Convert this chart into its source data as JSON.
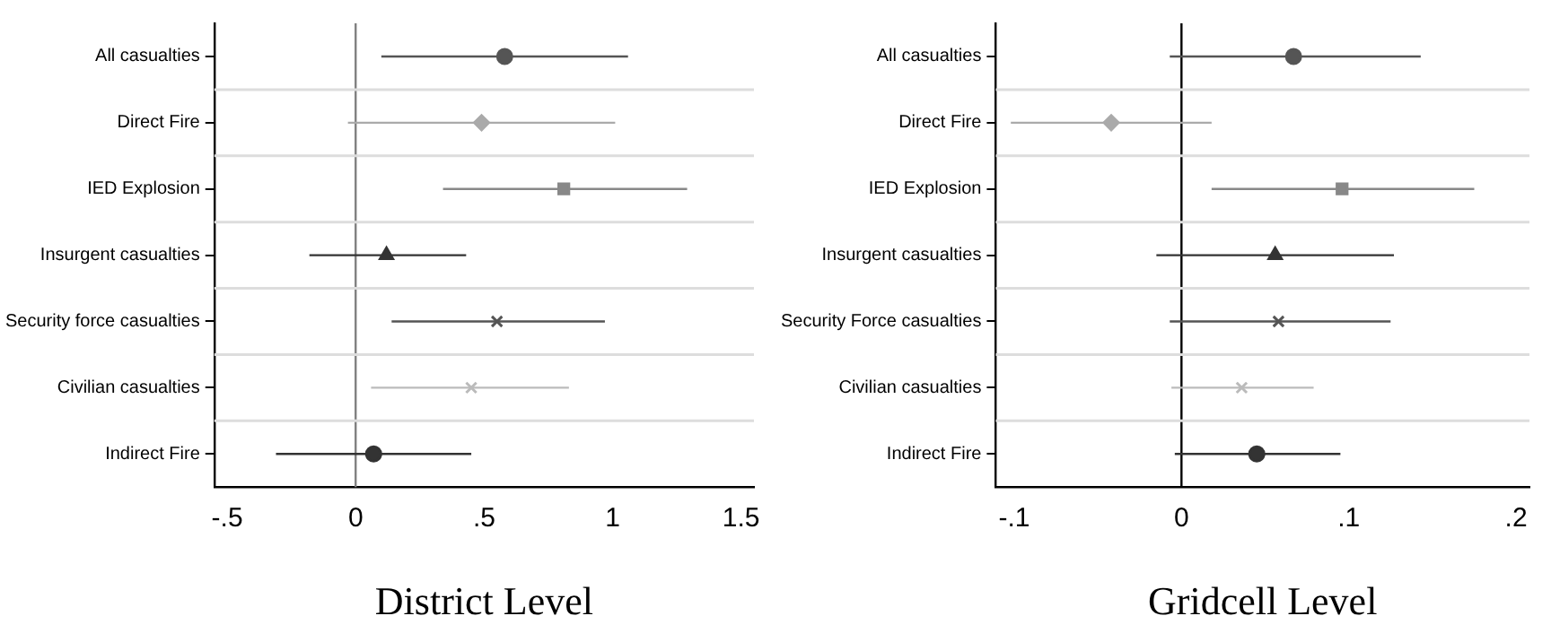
{
  "chart_data": [
    {
      "type": "scatter",
      "orientation": "horizontal",
      "xlabel": "District Level",
      "categories": [
        "All casualties",
        "Direct Fire",
        "IED Explosion",
        "Insurgent casualties",
        "Security force casualties",
        "Civilian casualties",
        "Indirect Fire"
      ],
      "xlim": [
        -0.55,
        1.55
      ],
      "xticks": [
        {
          "value": -0.5,
          "label": "-.5"
        },
        {
          "value": 0,
          "label": "0"
        },
        {
          "value": 0.5,
          "label": ".5"
        },
        {
          "value": 1,
          "label": "1"
        },
        {
          "value": 1.5,
          "label": "1.5"
        }
      ],
      "grid": "y",
      "ref_lines": [
        {
          "axis": "x",
          "value": 0,
          "color": "#808080"
        }
      ],
      "series": [
        {
          "color": "#555555",
          "marker": "circle",
          "values": [
            0.58,
            null,
            null,
            null,
            null,
            null,
            null
          ],
          "errors": [
            [
              0.1,
              1.06
            ],
            null,
            null,
            null,
            null,
            null,
            null
          ]
        },
        {
          "color": "#aaaaaa",
          "marker": "diamond",
          "values": [
            null,
            0.49,
            null,
            null,
            null,
            null,
            null
          ],
          "errors": [
            null,
            [
              -0.03,
              1.01
            ],
            null,
            null,
            null,
            null,
            null
          ]
        },
        {
          "color": "#888888",
          "marker": "square",
          "values": [
            null,
            null,
            0.81,
            null,
            null,
            null,
            null
          ],
          "errors": [
            null,
            null,
            [
              0.34,
              1.29
            ],
            null,
            null,
            null,
            null
          ]
        },
        {
          "color": "#333333",
          "marker": "triangle",
          "values": [
            null,
            null,
            null,
            0.12,
            null,
            null,
            null
          ],
          "errors": [
            null,
            null,
            null,
            [
              -0.18,
              0.43
            ],
            null,
            null,
            null
          ]
        },
        {
          "color": "#555555",
          "marker": "cross",
          "values": [
            null,
            null,
            null,
            null,
            0.55,
            null,
            null
          ],
          "errors": [
            null,
            null,
            null,
            null,
            [
              0.14,
              0.97
            ],
            null,
            null
          ]
        },
        {
          "color": "#bbbbbb",
          "marker": "cross",
          "values": [
            null,
            null,
            null,
            null,
            null,
            0.45,
            null
          ],
          "errors": [
            null,
            null,
            null,
            null,
            null,
            [
              0.06,
              0.83
            ],
            null
          ]
        },
        {
          "color": "#333333",
          "marker": "circle",
          "values": [
            null,
            null,
            null,
            null,
            null,
            null,
            0.07
          ],
          "errors": [
            null,
            null,
            null,
            null,
            null,
            null,
            [
              -0.31,
              0.45
            ]
          ]
        }
      ]
    },
    {
      "type": "scatter",
      "orientation": "horizontal",
      "xlabel": "Gridcell Level",
      "categories": [
        "All casualties",
        "Direct Fire",
        "IED Explosion",
        "Insurgent casualties",
        "Security Force casualties",
        "Civilian casualties",
        "Indirect Fire"
      ],
      "xlim": [
        -0.111,
        0.208
      ],
      "xticks": [
        {
          "value": -0.1,
          "label": "-.1"
        },
        {
          "value": 0,
          "label": "0"
        },
        {
          "value": 0.1,
          "label": ".1"
        },
        {
          "value": 0.2,
          "label": ".2"
        }
      ],
      "grid": "y",
      "ref_lines": [
        {
          "axis": "x",
          "value": 0,
          "color": "#000000"
        }
      ],
      "series": [
        {
          "color": "#555555",
          "marker": "circle",
          "values": [
            0.067,
            null,
            null,
            null,
            null,
            null,
            null
          ],
          "errors": [
            [
              -0.007,
              0.143
            ],
            null,
            null,
            null,
            null,
            null,
            null
          ]
        },
        {
          "color": "#aaaaaa",
          "marker": "diamond",
          "values": [
            null,
            -0.042,
            null,
            null,
            null,
            null,
            null
          ],
          "errors": [
            null,
            [
              -0.102,
              0.018
            ],
            null,
            null,
            null,
            null,
            null
          ]
        },
        {
          "color": "#888888",
          "marker": "square",
          "values": [
            null,
            null,
            0.096,
            null,
            null,
            null,
            null
          ],
          "errors": [
            null,
            null,
            [
              0.018,
              0.175
            ],
            null,
            null,
            null,
            null
          ]
        },
        {
          "color": "#333333",
          "marker": "triangle",
          "values": [
            null,
            null,
            null,
            0.056,
            null,
            null,
            null
          ],
          "errors": [
            null,
            null,
            null,
            [
              -0.015,
              0.127
            ],
            null,
            null,
            null
          ]
        },
        {
          "color": "#555555",
          "marker": "cross",
          "values": [
            null,
            null,
            null,
            null,
            0.058,
            null,
            null
          ],
          "errors": [
            null,
            null,
            null,
            null,
            [
              -0.007,
              0.125
            ],
            null,
            null
          ]
        },
        {
          "color": "#bbbbbb",
          "marker": "cross",
          "values": [
            null,
            null,
            null,
            null,
            null,
            0.036,
            null
          ],
          "errors": [
            null,
            null,
            null,
            null,
            null,
            [
              -0.006,
              0.079
            ],
            null
          ]
        },
        {
          "color": "#333333",
          "marker": "circle",
          "values": [
            null,
            null,
            null,
            null,
            null,
            null,
            0.045
          ],
          "errors": [
            null,
            null,
            null,
            null,
            null,
            null,
            [
              -0.004,
              0.095
            ]
          ]
        }
      ]
    }
  ]
}
